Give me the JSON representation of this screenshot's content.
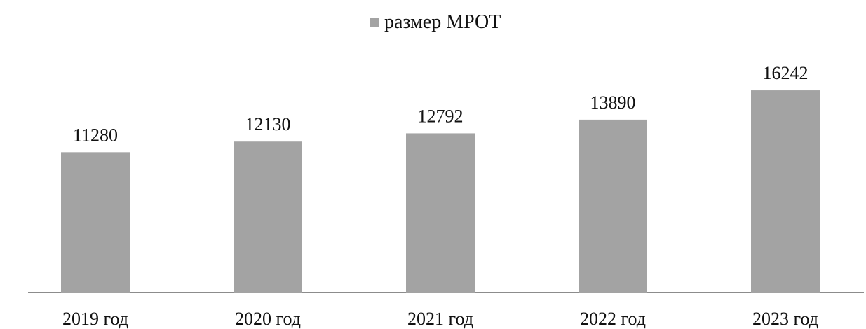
{
  "chart_data": {
    "type": "bar",
    "categories": [
      "2019 год",
      "2020 год",
      "2021 год",
      "2022 год",
      "2023 год"
    ],
    "series": [
      {
        "name": "размер МРОТ",
        "values": [
          11280,
          12130,
          12792,
          13890,
          16242
        ]
      }
    ],
    "value_labels": [
      "11280",
      "12130",
      "12792",
      "13890",
      "16242"
    ],
    "title": "",
    "xlabel": "",
    "ylabel": "",
    "ylim": [
      0,
      19000
    ],
    "grid": false,
    "legend_position": "top-center",
    "bar_color": "#a3a3a3",
    "axis_color": "#8c8c8c"
  }
}
